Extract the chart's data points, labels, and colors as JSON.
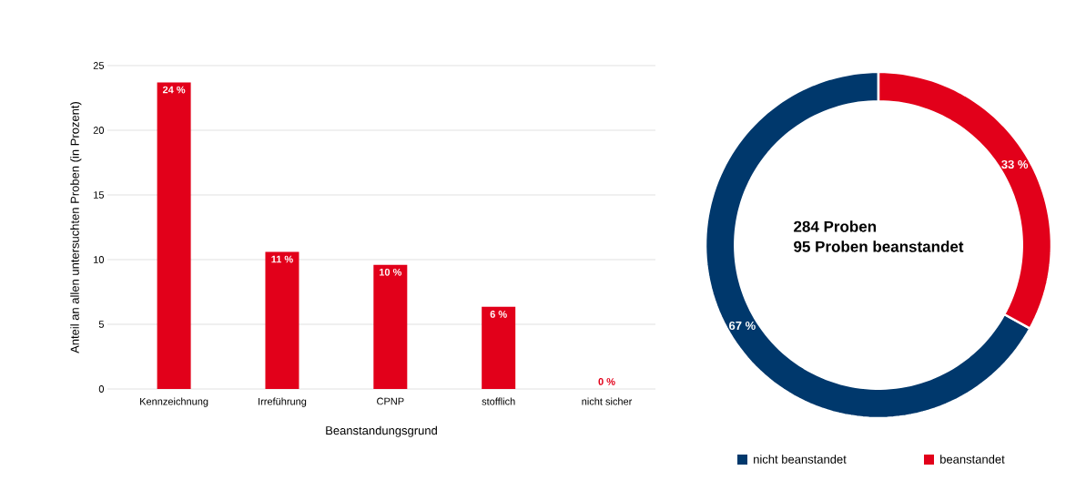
{
  "chart_data": [
    {
      "type": "bar",
      "xlabel": "Beanstandungsgrund",
      "ylabel": "Anteil an allen untersuchten Proben (in Prozent)",
      "categories": [
        "Kennzeichnung",
        "Irreführung",
        "CPNP",
        "stofflich",
        "nicht sicher"
      ],
      "values": [
        23.7,
        10.6,
        9.6,
        6.35,
        0
      ],
      "color": "#e2001a",
      "value_labels": [
        "24 %",
        "11 %",
        "10 %",
        "6 %",
        "0 %"
      ],
      "ylim": [
        0,
        25
      ],
      "yticks": [
        0,
        5,
        10,
        15,
        20,
        25
      ],
      "grid": "y",
      "legend": false
    },
    {
      "type": "donut",
      "categories": [
        "nicht beanstandet",
        "beanstandet"
      ],
      "values": [
        67,
        33
      ],
      "colors": [
        "#00386c",
        "#e2001a"
      ],
      "value_labels": [
        "67 %",
        "33 %"
      ],
      "annotations": [
        "284 Proben",
        "95 Proben beanstandet"
      ],
      "legend": "bottom"
    }
  ]
}
